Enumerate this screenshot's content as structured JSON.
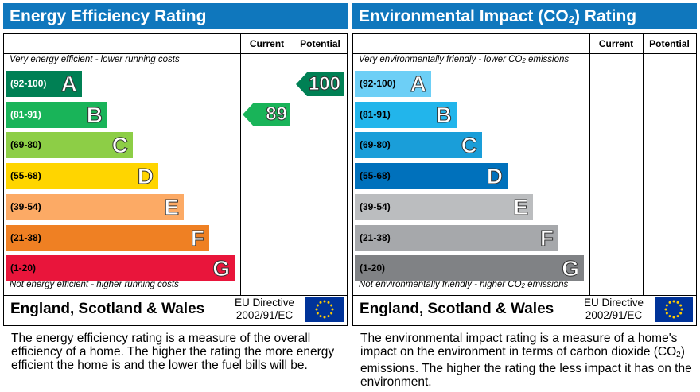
{
  "energy": {
    "title": "Energy Efficiency Rating",
    "col_current": "Current",
    "col_potential": "Potential",
    "top_note": "Very energy efficient - lower running costs",
    "bottom_note": "Not energy efficient - higher running costs",
    "bands": [
      {
        "range": "(92-100)",
        "letter": "A",
        "color": "#008054",
        "range_color": "#ffffff"
      },
      {
        "range": "(81-91)",
        "letter": "B",
        "color": "#19b459",
        "range_color": "#ffffff"
      },
      {
        "range": "(69-80)",
        "letter": "C",
        "color": "#8dce46",
        "range_color": "#000000"
      },
      {
        "range": "(55-68)",
        "letter": "D",
        "color": "#ffd500",
        "range_color": "#000000"
      },
      {
        "range": "(39-54)",
        "letter": "E",
        "color": "#fcaa65",
        "range_color": "#000000"
      },
      {
        "range": "(21-38)",
        "letter": "F",
        "color": "#ef8023",
        "range_color": "#000000"
      },
      {
        "range": "(1-20)",
        "letter": "G",
        "color": "#e9153b",
        "range_color": "#000000"
      }
    ],
    "current": {
      "value": "89",
      "band": "B",
      "color": "#19b459"
    },
    "potential": {
      "value": "100",
      "band": "A",
      "color": "#008054"
    },
    "region": "England, Scotland & Wales",
    "directive_line1": "EU Directive",
    "directive_line2": "2002/91/EC",
    "description": "The energy efficiency rating is a measure of the overall efficiency of a home. The higher the rating the more energy efficient the home is and the lower the fuel bills will be."
  },
  "environment": {
    "title_pre": "Environmental Impact (CO",
    "title_sub": "2",
    "title_post": ") Rating",
    "col_current": "Current",
    "col_potential": "Potential",
    "top_note_pre": "Very environmentally friendly - lower CO",
    "top_note_sub": "2",
    "top_note_post": " emissions",
    "bottom_note_pre": "Not environmentally friendly - higher CO",
    "bottom_note_sub": "2",
    "bottom_note_post": " emissions",
    "bands": [
      {
        "range": "(92-100)",
        "letter": "A",
        "color": "#6dcff6"
      },
      {
        "range": "(81-91)",
        "letter": "B",
        "color": "#22b5eb"
      },
      {
        "range": "(69-80)",
        "letter": "C",
        "color": "#1a9ed9"
      },
      {
        "range": "(55-68)",
        "letter": "D",
        "color": "#0071bc"
      },
      {
        "range": "(39-54)",
        "letter": "E",
        "color": "#bbbdbf"
      },
      {
        "range": "(21-38)",
        "letter": "F",
        "color": "#a6a8ab"
      },
      {
        "range": "(1-20)",
        "letter": "G",
        "color": "#808285"
      }
    ],
    "region": "England, Scotland & Wales",
    "directive_line1": "EU Directive",
    "directive_line2": "2002/91/EC",
    "description_pre": "The environmental impact rating is a measure of a home's impact on the environment in terms of carbon dioxide (CO",
    "description_sub": "2",
    "description_post": ") emissions. The higher the rating the less impact it has on the environment."
  }
}
